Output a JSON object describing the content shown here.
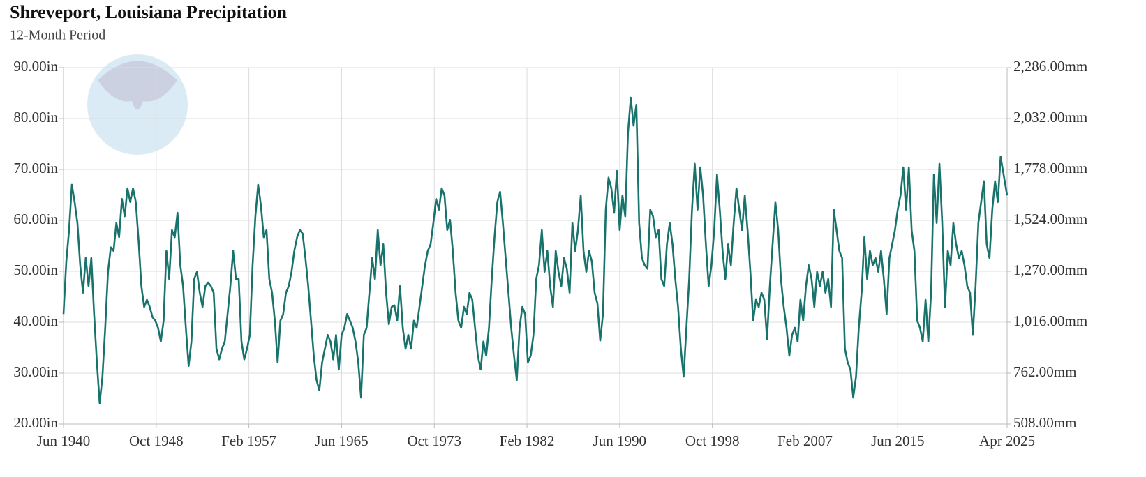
{
  "chart_data": {
    "type": "line",
    "title": "Shreveport, Louisiana Precipitation",
    "subtitle": "12-Month Period",
    "color": "#17736b",
    "grid": true,
    "xlim": [
      "Jun 1940",
      "Apr 2025"
    ],
    "xticks": [
      "Jun 1940",
      "Oct 1948",
      "Feb 1957",
      "Jun 1965",
      "Oct 1973",
      "Feb 1982",
      "Jun 1990",
      "Oct 1998",
      "Feb 2007",
      "Jun 2015",
      "Apr 2025"
    ],
    "ylim": [
      20,
      90
    ],
    "yticks": [
      {
        "value": 20,
        "label": "20.00in"
      },
      {
        "value": 30,
        "label": "30.00in"
      },
      {
        "value": 40,
        "label": "40.00in"
      },
      {
        "value": 50,
        "label": "50.00in"
      },
      {
        "value": 60,
        "label": "60.00in"
      },
      {
        "value": 70,
        "label": "70.00in"
      },
      {
        "value": 80,
        "label": "80.00in"
      },
      {
        "value": 90,
        "label": "90.00in"
      }
    ],
    "y2lim": [
      508,
      2286
    ],
    "y2ticks": [
      {
        "value": 508,
        "label": "508.00mm"
      },
      {
        "value": 762,
        "label": "762.00mm"
      },
      {
        "value": 1016,
        "label": "1,016.00mm"
      },
      {
        "value": 1270,
        "label": "1,270.00mm"
      },
      {
        "value": 1524,
        "label": "1,524.00mm"
      },
      {
        "value": 1778,
        "label": "1,778.00mm"
      },
      {
        "value": 2032,
        "label": "2,032.00mm"
      },
      {
        "value": 2286,
        "label": "2,286.00mm"
      }
    ],
    "x": [
      "Jun 1940",
      "Sep 1940",
      "Dec 1940",
      "Mar 1941",
      "Jun 1941",
      "Sep 1941",
      "Dec 1941",
      "Mar 1942",
      "Jun 1942",
      "Sep 1942",
      "Dec 1942",
      "Mar 1943",
      "Jun 1943",
      "Sep 1943",
      "Dec 1943",
      "Mar 1944",
      "Jun 1944",
      "Sep 1944",
      "Dec 1944",
      "Mar 1945",
      "Jun 1945",
      "Sep 1945",
      "Dec 1945",
      "Mar 1946",
      "Jun 1946",
      "Sep 1946",
      "Dec 1946",
      "Mar 1947",
      "Jun 1947",
      "Sep 1947",
      "Dec 1947",
      "Mar 1948",
      "Jun 1948",
      "Sep 1948",
      "Dec 1948",
      "Mar 1949",
      "Jun 1949",
      "Sep 1949",
      "Dec 1949",
      "Mar 1950",
      "Jun 1950",
      "Sep 1950",
      "Dec 1950",
      "Mar 1951",
      "Jun 1951",
      "Sep 1951",
      "Dec 1951",
      "Mar 1952",
      "Jun 1952",
      "Sep 1952",
      "Dec 1952",
      "Mar 1953",
      "Jun 1953",
      "Sep 1953",
      "Dec 1953",
      "Mar 1954",
      "Jun 1954",
      "Sep 1954",
      "Dec 1954",
      "Mar 1955",
      "Jun 1955",
      "Sep 1955",
      "Dec 1955",
      "Mar 1956",
      "Jun 1956",
      "Sep 1956",
      "Dec 1956",
      "Mar 1957",
      "Jun 1957",
      "Sep 1957",
      "Dec 1957",
      "Mar 1958",
      "Jun 1958",
      "Sep 1958",
      "Dec 1958",
      "Mar 1959",
      "Jun 1959",
      "Sep 1959",
      "Dec 1959",
      "Mar 1960",
      "Jun 1960",
      "Sep 1960",
      "Dec 1960",
      "Mar 1961",
      "Jun 1961",
      "Sep 1961",
      "Dec 1961",
      "Mar 1962",
      "Jun 1962",
      "Sep 1962",
      "Dec 1962",
      "Mar 1963",
      "Jun 1963",
      "Sep 1963",
      "Dec 1963",
      "Mar 1964",
      "Jun 1964",
      "Sep 1964",
      "Dec 1964",
      "Mar 1965",
      "Jun 1965",
      "Sep 1965",
      "Dec 1965",
      "Mar 1966",
      "Jun 1966",
      "Sep 1966",
      "Dec 1966",
      "Mar 1967",
      "Jun 1967",
      "Sep 1967",
      "Dec 1967",
      "Mar 1968",
      "Jun 1968",
      "Sep 1968",
      "Dec 1968",
      "Mar 1969",
      "Jun 1969",
      "Sep 1969",
      "Dec 1969",
      "Mar 1970",
      "Jun 1970",
      "Sep 1970",
      "Dec 1970",
      "Mar 1971",
      "Jun 1971",
      "Sep 1971",
      "Dec 1971",
      "Mar 1972",
      "Jun 1972",
      "Sep 1972",
      "Dec 1972",
      "Mar 1973",
      "Jun 1973",
      "Sep 1973",
      "Dec 1973",
      "Mar 1974",
      "Jun 1974",
      "Sep 1974",
      "Dec 1974",
      "Mar 1975",
      "Jun 1975",
      "Sep 1975",
      "Dec 1975",
      "Mar 1976",
      "Jun 1976",
      "Sep 1976",
      "Dec 1976",
      "Mar 1977",
      "Jun 1977",
      "Sep 1977",
      "Dec 1977",
      "Mar 1978",
      "Jun 1978",
      "Sep 1978",
      "Dec 1978",
      "Mar 1979",
      "Jun 1979",
      "Sep 1979",
      "Dec 1979",
      "Mar 1980",
      "Jun 1980",
      "Sep 1980",
      "Dec 1980",
      "Mar 1981",
      "Jun 1981",
      "Sep 1981",
      "Dec 1981",
      "Mar 1982",
      "Jun 1982",
      "Sep 1982",
      "Dec 1982",
      "Mar 1983",
      "Jun 1983",
      "Sep 1983",
      "Dec 1983",
      "Mar 1984",
      "Jun 1984",
      "Sep 1984",
      "Dec 1984",
      "Mar 1985",
      "Jun 1985",
      "Sep 1985",
      "Dec 1985",
      "Mar 1986",
      "Jun 1986",
      "Sep 1986",
      "Dec 1986",
      "Mar 1987",
      "Jun 1987",
      "Sep 1987",
      "Dec 1987",
      "Mar 1988",
      "Jun 1988",
      "Sep 1988",
      "Dec 1988",
      "Mar 1989",
      "Jun 1989",
      "Sep 1989",
      "Dec 1989",
      "Mar 1990",
      "Jun 1990",
      "Sep 1990",
      "Dec 1990",
      "Mar 1991",
      "Jun 1991",
      "Sep 1991",
      "Dec 1991",
      "Mar 1992",
      "Jun 1992",
      "Sep 1992",
      "Dec 1992",
      "Mar 1993",
      "Jun 1993",
      "Sep 1993",
      "Dec 1993",
      "Mar 1994",
      "Jun 1994",
      "Sep 1994",
      "Dec 1994",
      "Mar 1995",
      "Jun 1995",
      "Sep 1995",
      "Dec 1995",
      "Mar 1996",
      "Jun 1996",
      "Sep 1996",
      "Dec 1996",
      "Mar 1997",
      "Jun 1997",
      "Sep 1997",
      "Dec 1997",
      "Mar 1998",
      "Jun 1998",
      "Sep 1998",
      "Dec 1998",
      "Mar 1999",
      "Jun 1999",
      "Sep 1999",
      "Dec 1999",
      "Mar 2000",
      "Jun 2000",
      "Sep 2000",
      "Dec 2000",
      "Mar 2001",
      "Jun 2001",
      "Sep 2001",
      "Dec 2001",
      "Mar 2002",
      "Jun 2002",
      "Sep 2002",
      "Dec 2002",
      "Mar 2003",
      "Jun 2003",
      "Sep 2003",
      "Dec 2003",
      "Mar 2004",
      "Jun 2004",
      "Sep 2004",
      "Dec 2004",
      "Mar 2005",
      "Jun 2005",
      "Sep 2005",
      "Dec 2005",
      "Mar 2006",
      "Jun 2006",
      "Sep 2006",
      "Dec 2006",
      "Mar 2007",
      "Jun 2007",
      "Sep 2007",
      "Dec 2007",
      "Mar 2008",
      "Jun 2008",
      "Sep 2008",
      "Dec 2008",
      "Mar 2009",
      "Jun 2009",
      "Sep 2009",
      "Dec 2009",
      "Mar 2010",
      "Jun 2010",
      "Sep 2010",
      "Dec 2010",
      "Mar 2011",
      "Jun 2011",
      "Sep 2011",
      "Dec 2011",
      "Mar 2012",
      "Jun 2012",
      "Sep 2012",
      "Dec 2012",
      "Mar 2013",
      "Jun 2013",
      "Sep 2013",
      "Dec 2013",
      "Mar 2014",
      "Jun 2014",
      "Sep 2014",
      "Dec 2014",
      "Mar 2015",
      "Jun 2015",
      "Sep 2015",
      "Dec 2015",
      "Mar 2016",
      "Jun 2016",
      "Sep 2016",
      "Dec 2016",
      "Mar 2017",
      "Jun 2017",
      "Sep 2017",
      "Dec 2017",
      "Mar 2018",
      "Jun 2018",
      "Sep 2018",
      "Dec 2018",
      "Mar 2019",
      "Jun 2019",
      "Sep 2019",
      "Dec 2019",
      "Mar 2020",
      "Jun 2020",
      "Sep 2020",
      "Dec 2020",
      "Mar 2021",
      "Jun 2021",
      "Sep 2021",
      "Dec 2021",
      "Mar 2022",
      "Jun 2022",
      "Sep 2022",
      "Dec 2022",
      "Mar 2023",
      "Jun 2023",
      "Sep 2023",
      "Dec 2023",
      "Mar 2024",
      "Jun 2024",
      "Sep 2024",
      "Apr 2025"
    ],
    "values": [
      41.6,
      51.9,
      58.1,
      67,
      63.6,
      59.5,
      51.2,
      45.8,
      52.6,
      47.1,
      52.6,
      41.6,
      32.1,
      24.1,
      29.3,
      38.9,
      49.9,
      54.7,
      54,
      59.5,
      56.7,
      64.2,
      60.8,
      66.3,
      63.6,
      66.3,
      63.6,
      56,
      47.1,
      43,
      44.4,
      43,
      41,
      40.3,
      38.9,
      36.2,
      40.3,
      54,
      48.5,
      58.1,
      56.7,
      61.5,
      51.2,
      47.1,
      38.9,
      31.4,
      36.2,
      48.5,
      49.9,
      45.8,
      43,
      47.1,
      47.8,
      47.1,
      45.8,
      34.8,
      32.7,
      34.8,
      36.2,
      41.6,
      47.1,
      54,
      48.5,
      48.5,
      36.2,
      32.7,
      34.8,
      37.5,
      51.2,
      60.8,
      67,
      62.9,
      56.7,
      58.1,
      48.5,
      45.8,
      40.3,
      32.1,
      40.3,
      41.6,
      45.8,
      47.1,
      49.9,
      54,
      56.7,
      58.1,
      57.4,
      52.6,
      47.1,
      40.3,
      33.4,
      28.6,
      26.6,
      32.1,
      34.8,
      37.5,
      36.2,
      32.7,
      37.5,
      30.7,
      37.5,
      38.9,
      41.6,
      40.3,
      38.9,
      36.2,
      32.1,
      25.2,
      37.5,
      38.9,
      45.8,
      52.6,
      48.5,
      58.1,
      51.2,
      55.3,
      45.8,
      39.6,
      43,
      43.3,
      40.3,
      47.1,
      38.9,
      34.8,
      37.5,
      34.8,
      40.3,
      38.9,
      43,
      47.1,
      51.2,
      54,
      55.3,
      59.5,
      64.2,
      62.1,
      66.3,
      64.9,
      58.1,
      60.1,
      54,
      45.8,
      40.3,
      38.9,
      43,
      41.6,
      45.8,
      44.4,
      38.9,
      33.4,
      30.7,
      36.2,
      33.4,
      38.9,
      48.5,
      56.7,
      63.6,
      65.6,
      59.5,
      52.6,
      45.8,
      38.9,
      33.4,
      28.6,
      38.9,
      43,
      41.6,
      32.1,
      33.4,
      37.5,
      48.5,
      51.2,
      58.1,
      49.9,
      54,
      47.1,
      43,
      54,
      49.9,
      47.1,
      52.6,
      50.5,
      45.8,
      59.5,
      54,
      58.1,
      64.9,
      54,
      49.9,
      54,
      51.9,
      45.8,
      43.7,
      36.4,
      41.6,
      62.1,
      68.4,
      66.3,
      61.5,
      69.7,
      58.1,
      64.9,
      60.8,
      77.3,
      84.1,
      78.6,
      82.7,
      59.5,
      52.6,
      51.2,
      50.5,
      62.1,
      60.8,
      56.7,
      58.1,
      48.5,
      47.1,
      55.3,
      59.5,
      55.3,
      48.5,
      43,
      34.8,
      29.3,
      38.9,
      48.5,
      62.1,
      71.1,
      62.1,
      70.4,
      64.9,
      55.3,
      47.1,
      51.2,
      58.1,
      69,
      62.1,
      54,
      48.5,
      55.3,
      51.2,
      59.5,
      66.3,
      62.1,
      58.1,
      64.9,
      58.1,
      49.9,
      40.3,
      44.4,
      43,
      45.8,
      44.4,
      36.7,
      47.1,
      55.3,
      63.6,
      58.1,
      48.5,
      43,
      38.9,
      33.4,
      37.5,
      38.9,
      36.2,
      44.4,
      40.3,
      47.1,
      51.2,
      48.5,
      43,
      49.9,
      47.1,
      49.9,
      45.8,
      48.5,
      43,
      62.1,
      58.1,
      54,
      52.6,
      34.8,
      32.1,
      30.7,
      25.2,
      29.3,
      38.9,
      45.8,
      56.7,
      48.5,
      54,
      51.2,
      52.6,
      49.9,
      54,
      48.5,
      41.6,
      52.6,
      55.3,
      58.1,
      62.1,
      64.9,
      70.4,
      62.1,
      70.4,
      58.1,
      54,
      40.3,
      38.9,
      36.2,
      44.4,
      36.2,
      45.8,
      69,
      59.5,
      71.1,
      59.5,
      43,
      54,
      51.2,
      59.5,
      55.3,
      52.6,
      54,
      51.2,
      47.1,
      45.8,
      37.5,
      47.1,
      59.5,
      63.6,
      67.7,
      55.3,
      52.6,
      62.1,
      67.7,
      63.6,
      72.5,
      64.9
    ]
  }
}
